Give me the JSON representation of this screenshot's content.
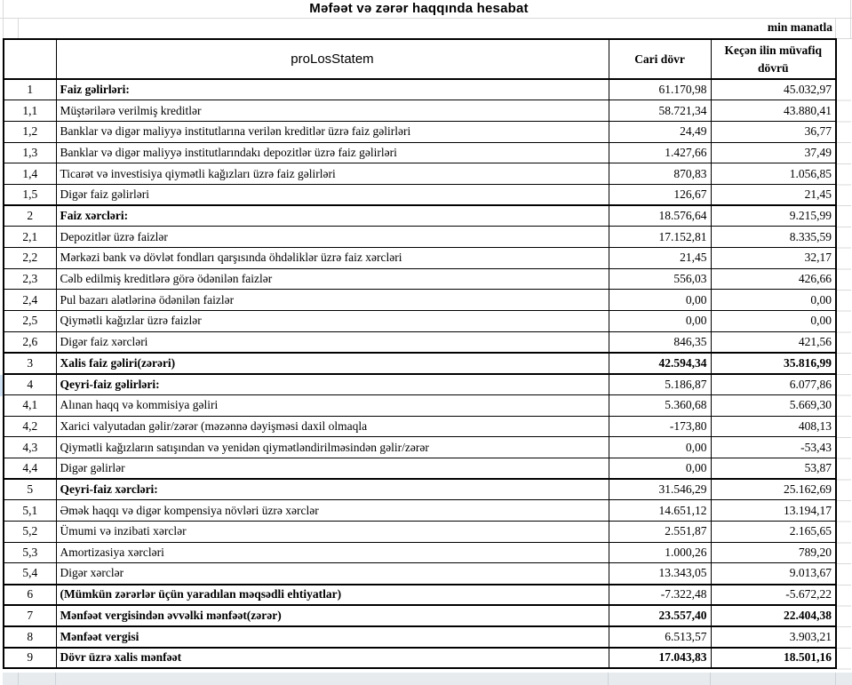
{
  "title": "Məfəət və zərər haqqında hesabat",
  "unit_note": "min manatla",
  "colors": {
    "table_border": "#000000",
    "gridline": "#d9d9d9",
    "footer_strip": "#e7ebee",
    "row_marker": "#cfe1f2"
  },
  "table": {
    "header": {
      "name_col": "proLosStatem",
      "current": "Cari dövr",
      "previous": "Keçən ilin müvafiq dövrü"
    },
    "rows": [
      {
        "no": "1",
        "label": "Faiz gəlirləri:",
        "current": "61.170,98",
        "previous": "45.032,97",
        "section": true
      },
      {
        "no": "1,1",
        "label": "Müştərilərə verilmiş kreditlər",
        "current": "58.721,34",
        "previous": "43.880,41"
      },
      {
        "no": "1,2",
        "label": "Banklar və digər maliyyə institutlarına verilən kreditlər üzrə faiz gəlirləri",
        "current": "24,49",
        "previous": "36,77"
      },
      {
        "no": "1,3",
        "label": "Banklar və digər maliyyə institutlarındakı depozitlər üzrə faiz gəlirləri",
        "current": "1.427,66",
        "previous": "37,49"
      },
      {
        "no": "1,4",
        "label": "Ticarət və investisiya qiymətli kağızları üzrə faiz gəlirləri",
        "current": "870,83",
        "previous": "1.056,85"
      },
      {
        "no": "1,5",
        "label": "Digər faiz gəlirləri",
        "current": "126,67",
        "previous": "21,45"
      },
      {
        "no": "2",
        "label": "Faiz xərcləri:",
        "current": "18.576,64",
        "previous": "9.215,99",
        "section": true
      },
      {
        "no": "2,1",
        "label": "Depozitlər üzrə faizlər",
        "current": "17.152,81",
        "previous": "8.335,59"
      },
      {
        "no": "2,2",
        "label": "Mərkəzi bank və dövlət fondları qarşısında öhdəliklər üzrə faiz xərcləri",
        "current": "21,45",
        "previous": "32,17"
      },
      {
        "no": "2,3",
        "label": "Cəlb edilmiş kreditlərə görə ödənilən faizlər",
        "current": "556,03",
        "previous": "426,66"
      },
      {
        "no": "2,4",
        "label": "Pul bazarı alətlərinə ödənilən faizlər",
        "current": "0,00",
        "previous": "0,00"
      },
      {
        "no": "2,5",
        "label": "Qiymətli kağızlar üzrə faizlər",
        "current": "0,00",
        "previous": "0,00"
      },
      {
        "no": "2,6",
        "label": "Digər faiz xərcləri",
        "current": "846,35",
        "previous": "421,56"
      },
      {
        "no": "3",
        "label": "Xalis faiz gəliri(zərəri)",
        "current": "42.594,34",
        "previous": "35.816,99",
        "section": true,
        "bold_values": true
      },
      {
        "no": "4",
        "label": "Qeyri-faiz gəlirləri:",
        "current": "5.186,87",
        "previous": "6.077,86",
        "section": true
      },
      {
        "no": "4,1",
        "label": "Alınan haqq və kommisiya gəliri",
        "current": "5.360,68",
        "previous": "5.669,30"
      },
      {
        "no": "4,2",
        "label": "Xarici valyutadan gəlir/zərər (məzənnə dəyişməsi daxil olmaqla",
        "current": "-173,80",
        "previous": "408,13"
      },
      {
        "no": "4,3",
        "label": "Qiymətli kağızların satışından və yenidən qiymətləndirilməsindən gəlir/zərər",
        "current": "0,00",
        "previous": "-53,43"
      },
      {
        "no": "4,4",
        "label": "Digər gəlirlər",
        "current": "0,00",
        "previous": "53,87"
      },
      {
        "no": "5",
        "label": "Qeyri-faiz xərcləri:",
        "current": "31.546,29",
        "previous": "25.162,69",
        "section": true
      },
      {
        "no": "5,1",
        "label": "Əmək haqqı və digər kompensiya növləri üzrə xərclər",
        "current": "14.651,12",
        "previous": "13.194,17"
      },
      {
        "no": "5,2",
        "label": "Ümumi və inzibati xərclər",
        "current": "2.551,87",
        "previous": "2.165,65"
      },
      {
        "no": "5,3",
        "label": "Amortizasiya xərcləri",
        "current": "1.000,26",
        "previous": "789,20"
      },
      {
        "no": "5,4",
        "label": "Digər xərclər",
        "current": "13.343,05",
        "previous": "9.013,67"
      },
      {
        "no": "6",
        "label": "(Mümkün zərərlər üçün yaradılan məqsədli ehtiyatlar)",
        "current": "-7.322,48",
        "previous": "-5.672,22",
        "section": true
      },
      {
        "no": "7",
        "label": "Mənfəət vergisindən əvvəlki mənfəət(zərər)",
        "current": "23.557,40",
        "previous": "22.404,38",
        "section": true,
        "bold_values": true
      },
      {
        "no": "8",
        "label": "Mənfəət vergisi",
        "current": "6.513,57",
        "previous": "3.903,21",
        "section": true
      },
      {
        "no": "9",
        "label": "Dövr üzrə xalis mənfəət",
        "current": "17.043,83",
        "previous": "18.501,16",
        "section": true,
        "bold_values": true
      }
    ]
  }
}
